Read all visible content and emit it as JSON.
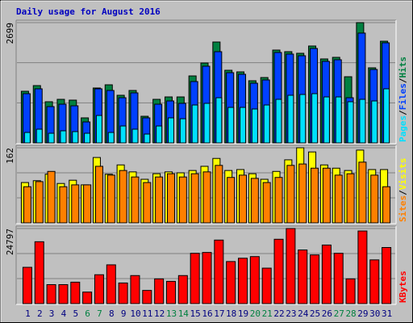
{
  "chart_data": [
    {
      "type": "bar",
      "title": "Daily usage for August 2016",
      "ylim": [
        0,
        2699
      ],
      "yticks": [
        2699
      ],
      "legend_separator": "/",
      "series": [
        {
          "name": "Hits",
          "color": "#008040",
          "values": [
            1159,
            1286,
            924,
            978,
            960,
            562,
            1232,
            1304,
            1069,
            1177,
            598,
            978,
            1032,
            1032,
            1503,
            1793,
            2264,
            1630,
            1594,
            1395,
            1467,
            2083,
            2047,
            2011,
            2174,
            1884,
            1920,
            1485,
            2699,
            1685,
            2282
          ]
        },
        {
          "name": "Files",
          "color": "#0040ff",
          "values": [
            1105,
            1214,
            815,
            869,
            833,
            471,
            1214,
            1177,
            1014,
            1123,
            562,
            869,
            942,
            888,
            1377,
            1721,
            2047,
            1576,
            1540,
            1340,
            1413,
            2029,
            1993,
            1956,
            2119,
            1830,
            1866,
            1014,
            2464,
            1648,
            2246
          ]
        },
        {
          "name": "Pages",
          "color": "#00e0ff",
          "values": [
            235,
            308,
            217,
            272,
            254,
            217,
            616,
            235,
            380,
            308,
            199,
            380,
            562,
            543,
            851,
            888,
            1014,
            797,
            797,
            761,
            851,
            978,
            1069,
            1087,
            1105,
            1032,
            1032,
            924,
            978,
            942,
            1214
          ]
        }
      ]
    },
    {
      "type": "bar",
      "ylim": [
        0,
        162
      ],
      "yticks": [
        162
      ],
      "legend_separator": "/",
      "series": [
        {
          "name": "Visits",
          "color": "#ffff00",
          "values": [
            87,
            91,
            105,
            85,
            92,
            82,
            141,
            105,
            125,
            110,
            94,
            106,
            110,
            108,
            113,
            122,
            139,
            113,
            115,
            106,
            94,
            111,
            136,
            162,
            153,
            125,
            118,
            113,
            157,
            115,
            115
          ]
        },
        {
          "name": "Sites",
          "color": "#ff8000",
          "values": [
            78,
            89,
            111,
            78,
            82,
            82,
            122,
            103,
            113,
            99,
            87,
            99,
            106,
            99,
            106,
            110,
            124,
            98,
            103,
            96,
            87,
            98,
            124,
            127,
            118,
            118,
            103,
            106,
            131,
            103,
            78
          ]
        }
      ]
    },
    {
      "type": "bar",
      "ylim": [
        0,
        24797
      ],
      "yticks": [
        24797
      ],
      "categories": [
        "1",
        "2",
        "3",
        "4",
        "5",
        "6",
        "7",
        "8",
        "9",
        "10",
        "11",
        "12",
        "13",
        "14",
        "15",
        "16",
        "17",
        "18",
        "19",
        "20",
        "21",
        "22",
        "23",
        "24",
        "25",
        "26",
        "27",
        "28",
        "29",
        "30",
        "31"
      ],
      "category_colors": [
        "#000080",
        "#000080",
        "#000080",
        "#000080",
        "#000080",
        "#008040",
        "#008040",
        "#000080",
        "#000080",
        "#000080",
        "#000080",
        "#000080",
        "#008040",
        "#008040",
        "#000080",
        "#000080",
        "#000080",
        "#000080",
        "#000080",
        "#008040",
        "#008040",
        "#000080",
        "#000080",
        "#000080",
        "#000080",
        "#000080",
        "#008040",
        "#008040",
        "#000080",
        "#000080",
        "#000080"
      ],
      "series": [
        {
          "name": "KBytes",
          "color": "#ff0000",
          "values": [
            11990,
            20438,
            6268,
            6268,
            7085,
            3815,
            9538,
            12808,
            6813,
            9265,
            4360,
            8175,
            7358,
            9265,
            16623,
            16895,
            20983,
            13898,
            14988,
            15533,
            11718,
            21255,
            24797,
            17713,
            16078,
            19348,
            16623,
            8175,
            23980,
            14443,
            18530
          ]
        }
      ]
    }
  ]
}
